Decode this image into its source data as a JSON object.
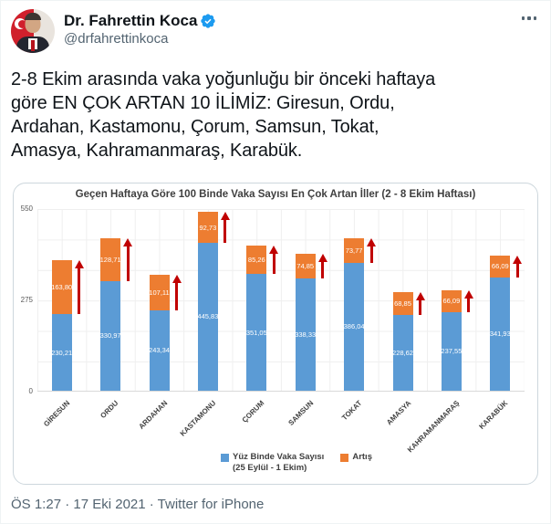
{
  "colors": {
    "verified_blue": "#1d9bf0",
    "bar_blue": "#5b9bd5",
    "bar_orange": "#ed7d31",
    "arrow_red": "#c00000"
  },
  "header": {
    "display_name": "Dr. Fahrettin Koca",
    "handle": "@drfahrettinkoca"
  },
  "tweet": {
    "text": "2-8 Ekim arasında vaka yoğunluğu bir önceki haftaya\ngöre EN ÇOK ARTAN 10 İLİMİZ: Giresun, Ordu,\nArdahan, Kastamonu, Çorum, Samsun, Tokat,\nAmasya, Kahramanmaraş, Karabük."
  },
  "chart_data": {
    "type": "bar",
    "stacked": true,
    "title": "Geçen Haftaya Göre 100 Binde Vaka Sayısı En Çok Artan İller (2 - 8 Ekim Haftası)",
    "categories": [
      "GİRESUN",
      "ORDU",
      "ARDAHAN",
      "KASTAMONU",
      "ÇORUM",
      "SAMSUN",
      "TOKAT",
      "AMASYA",
      "KAHRAMANMARAŞ",
      "KARABÜK"
    ],
    "series": [
      {
        "name": "Yüz Binde Vaka Sayısı (25 Eylül - 1 Ekim)",
        "color": "#5b9bd5",
        "values": [
          230.21,
          330.97,
          243.34,
          445.83,
          351.05,
          338.33,
          386.04,
          228.62,
          237.55,
          341.93
        ],
        "labels": [
          "230,21",
          "330,97",
          "243,34",
          "445,83",
          "351,05",
          "338,33",
          "386,04",
          "228,62",
          "237,55",
          "341,93"
        ]
      },
      {
        "name": "Artış",
        "color": "#ed7d31",
        "values": [
          163.8,
          128.71,
          107.11,
          92.73,
          85.26,
          74.85,
          73.77,
          68.85,
          66.09,
          66.09
        ],
        "labels": [
          "163,80",
          "128,71",
          "107,11",
          "92,73",
          "85,26",
          "74,85",
          "73,77",
          "68,85",
          "66,09",
          "66,09"
        ]
      }
    ],
    "ylim": [
      0,
      550
    ],
    "yticks": [
      {
        "value": 550,
        "label": "550"
      },
      {
        "value": 275,
        "label": "275"
      },
      {
        "value": 0,
        "label": "0"
      }
    ],
    "grid": true,
    "arrow_color": "#c00000",
    "legend": {
      "position": "bottom",
      "items": [
        {
          "label": "Yüz Binde Vaka Sayısı",
          "sub": "(25 Eylül - 1 Ekim)",
          "color": "#5b9bd5"
        },
        {
          "label": "Artış",
          "sub": "",
          "color": "#ed7d31"
        }
      ]
    }
  },
  "footer": {
    "timestamp": "ÖS 1:27 · 17 Eki 2021 · Twitter for iPhone"
  }
}
